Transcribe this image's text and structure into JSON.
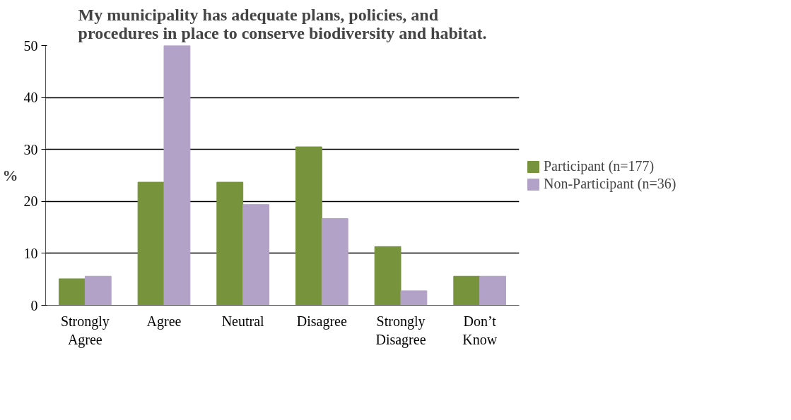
{
  "chart_data": {
    "type": "bar",
    "title": "My municipality has adequate plans, policies, and procedures in place to conserve biodiversity and habitat.",
    "ylabel": "%",
    "categories": [
      "Strongly Agree",
      "Agree",
      "Neutral",
      "Disagree",
      "Strongly Disagree",
      "Don’t Know"
    ],
    "series": [
      {
        "name": "Participant (n=177)",
        "color": "#77933c",
        "values": [
          5.1,
          23.7,
          23.7,
          30.5,
          11.3,
          5.6
        ]
      },
      {
        "name": "Non-Participant (n=36)",
        "color": "#b3a2c7",
        "values": [
          5.6,
          50,
          19.4,
          16.7,
          2.8,
          5.6
        ]
      }
    ],
    "ylim": [
      0,
      50
    ],
    "yticks": [
      0,
      10,
      20,
      30,
      40,
      50
    ],
    "grid": "y",
    "legend": "right"
  }
}
